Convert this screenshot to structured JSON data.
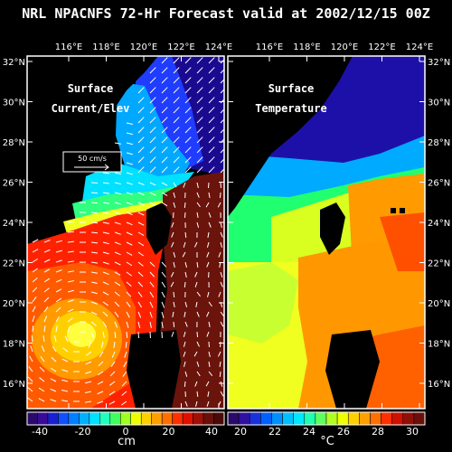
{
  "title": "NRL NPACNFS 72-Hr Forecast valid at 2002/12/15 00Z",
  "lon_labels": [
    "116°E",
    "118°E",
    "120°E",
    "122°E",
    "124°E"
  ],
  "lat_labels": [
    "32°N",
    "30°N",
    "28°N",
    "26°N",
    "24°N",
    "22°N",
    "20°N",
    "18°N",
    "16°N"
  ],
  "left_panel": {
    "label_line1": "Surface",
    "label_line2": "Current/Elev",
    "scale_label": "50 cm/s"
  },
  "right_panel": {
    "label_line1": "Surface",
    "label_line2": "Temperature"
  },
  "left_colorbar": {
    "tick_labels": [
      "-40",
      "-20",
      "0",
      "20",
      "40"
    ],
    "unit": "cm"
  },
  "right_colorbar": {
    "tick_labels": [
      "20",
      "22",
      "24",
      "26",
      "28",
      "30"
    ],
    "unit": "°C"
  }
}
